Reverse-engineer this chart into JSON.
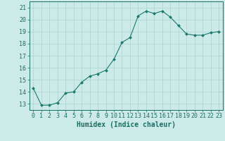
{
  "x": [
    0,
    1,
    2,
    3,
    4,
    5,
    6,
    7,
    8,
    9,
    10,
    11,
    12,
    13,
    14,
    15,
    16,
    17,
    18,
    19,
    20,
    21,
    22,
    23
  ],
  "y": [
    14.3,
    12.9,
    12.9,
    13.1,
    13.9,
    14.0,
    14.8,
    15.3,
    15.5,
    15.8,
    16.7,
    18.1,
    18.5,
    20.3,
    20.7,
    20.5,
    20.7,
    20.2,
    19.5,
    18.8,
    18.7,
    18.7,
    18.9,
    19.0
  ],
  "line_color": "#1a7a6e",
  "marker": "D",
  "marker_size": 2.0,
  "bg_color": "#cceae7",
  "grid_color": "#aad4d0",
  "xlabel": "Humidex (Indice chaleur)",
  "xlim": [
    -0.5,
    23.5
  ],
  "ylim": [
    12.5,
    21.5
  ],
  "yticks": [
    13,
    14,
    15,
    16,
    17,
    18,
    19,
    20,
    21
  ],
  "xtick_labels": [
    "0",
    "1",
    "2",
    "3",
    "4",
    "5",
    "6",
    "7",
    "8",
    "9",
    "10",
    "11",
    "12",
    "13",
    "14",
    "15",
    "16",
    "17",
    "18",
    "19",
    "20",
    "21",
    "22",
    "23"
  ],
  "tick_color": "#1a6e64",
  "label_fontsize": 6.0,
  "xlabel_fontsize": 7.0
}
